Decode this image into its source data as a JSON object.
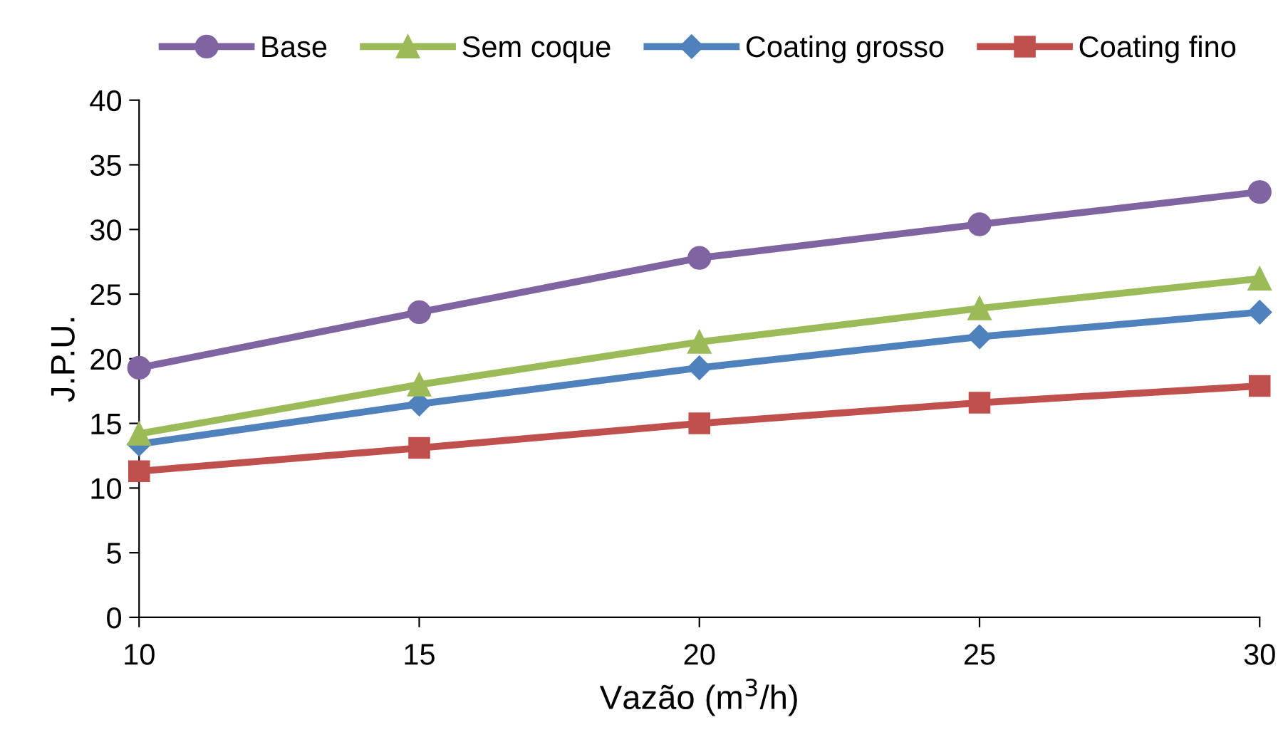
{
  "chart_data": {
    "type": "line",
    "xlabel": "Vazão (m$^{3}$/h)",
    "ylabel": "J.P.U.",
    "x": [
      10,
      15,
      20,
      25,
      30
    ],
    "series": [
      {
        "name": "Base",
        "color": "#8064a2",
        "marker": "circle",
        "values": [
          19.3,
          23.6,
          27.8,
          30.4,
          32.9
        ]
      },
      {
        "name": "Sem coque",
        "color": "#9bbb59",
        "marker": "triangle",
        "values": [
          14.2,
          18.0,
          21.3,
          23.9,
          26.2
        ]
      },
      {
        "name": "Coating grosso",
        "color": "#4f81bd",
        "marker": "diamond",
        "values": [
          13.4,
          16.5,
          19.3,
          21.7,
          23.6
        ]
      },
      {
        "name": "Coating fino",
        "color": "#c0504d",
        "marker": "square",
        "values": [
          11.3,
          13.1,
          15.0,
          16.6,
          17.9
        ]
      }
    ],
    "xlim": [
      10,
      30
    ],
    "xticks": [
      10,
      15,
      20,
      25,
      30
    ],
    "ylim": [
      0,
      40
    ],
    "yticks": [
      0,
      5,
      10,
      15,
      20,
      25,
      30,
      35,
      40
    ],
    "grid": false,
    "legend": "top",
    "line_style": "solid"
  }
}
